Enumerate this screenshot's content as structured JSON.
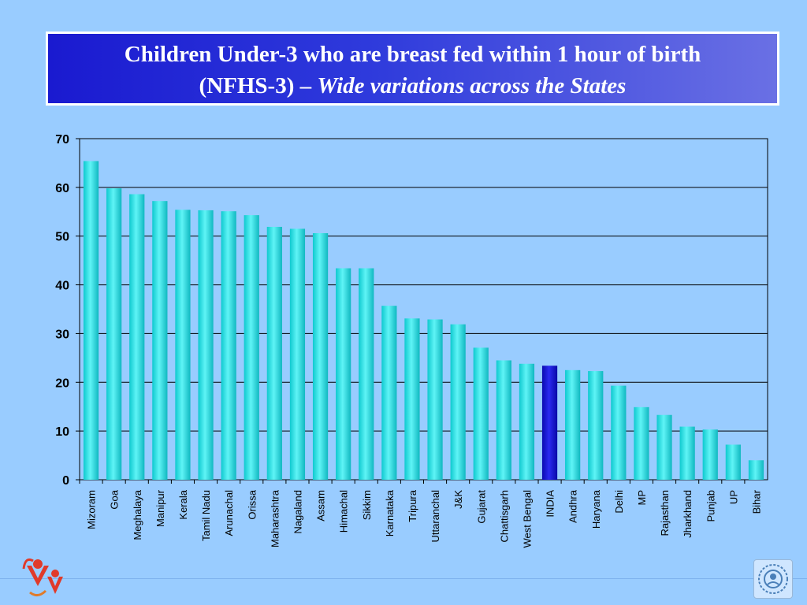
{
  "title": {
    "line1": "Children Under-3 who are breast fed within 1 hour of birth",
    "line2_plain": "(NFHS-3) – ",
    "line2_italic": "Wide variations across the States"
  },
  "colors": {
    "bar": "#19e0e6",
    "highlight_bar": "#1010d8",
    "background": "#99ccff",
    "grid": "#000000"
  },
  "icons": {
    "left_logo": "mother-child-logo-icon",
    "right_logo": "emblem-seal-icon"
  },
  "chart_data": {
    "type": "bar",
    "title": "",
    "xlabel": "",
    "ylabel": "",
    "ylim": [
      0,
      70
    ],
    "yticks": [
      0,
      10,
      20,
      30,
      40,
      50,
      60,
      70
    ],
    "grid": true,
    "highlight": "INDIA",
    "categories": [
      "Mizoram",
      "Goa",
      "Meghalaya",
      "Manipur",
      "Kerala",
      "Tamil Nadu",
      "Arunachal",
      "Orissa",
      "Maharashtra",
      "Nagaland",
      "Assam",
      "Himachal",
      "Sikkim",
      "Karnataka",
      "Tripura",
      "Uttaranchal",
      "J&K",
      "Gujarat",
      "Chattisgarh",
      "West Bengal",
      "INDIA",
      "Andhra",
      "Haryana",
      "Delhi",
      "MP",
      "Rajasthan",
      "Jharkhand",
      "Punjab",
      "UP",
      "Bihar"
    ],
    "values": [
      65.4,
      59.8,
      58.6,
      57.2,
      55.4,
      55.3,
      55.1,
      54.3,
      51.9,
      51.5,
      50.6,
      43.4,
      43.4,
      35.7,
      33.1,
      32.9,
      31.9,
      27.1,
      24.5,
      23.8,
      23.4,
      22.5,
      22.3,
      19.3,
      14.9,
      13.3,
      10.9,
      10.3,
      7.2,
      4.0
    ]
  }
}
